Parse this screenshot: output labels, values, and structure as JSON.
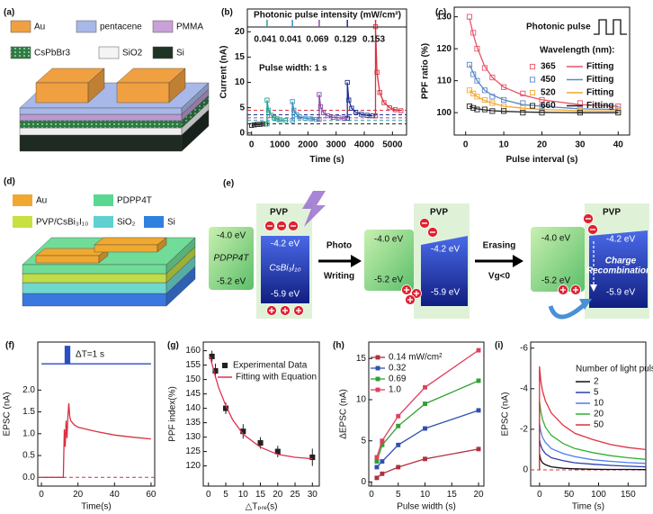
{
  "figures": {
    "a": {
      "label": "(a)",
      "legend": [
        "Au",
        "pentacene",
        "PMMA",
        "CsPbBr3",
        "SiO2",
        "Si"
      ]
    },
    "d": {
      "label": "(d)",
      "legend": [
        "Au",
        "PDPP4T",
        "PVP/CsBi₃I₁₀",
        "SiO₂",
        "Si"
      ]
    },
    "e": {
      "label": "(e)",
      "pvp": "PVP",
      "donor_lumo": "-4.0 eV",
      "donor_homo": "-5.2 eV",
      "donor": "PDPP4T",
      "acceptor_lumo": "-4.2 eV",
      "acceptor_homo": "-5.9 eV",
      "acceptor": "CsBi₃I₁₀",
      "step1": [
        "Photo",
        "Writing"
      ],
      "step2": [
        "Erasing",
        "Vg<0"
      ],
      "recombination": [
        "Charge",
        "Recombination"
      ]
    }
  },
  "chart_data": [
    {
      "type": "line",
      "label": "(b)",
      "xlabel": "Time (s)",
      "ylabel": "Current (nA)",
      "annotation": "Photonic pulse intensity (mW/cm²)",
      "note": "Pulse width: 1 s",
      "pulse_x": [
        550,
        1450,
        2400,
        3400,
        4400
      ],
      "intensities": [
        0.041,
        0.041,
        0.069,
        0.129,
        0.153
      ],
      "xlim": [
        -150,
        5500
      ],
      "xticks": [
        0,
        1000,
        2000,
        3000,
        4000,
        5000
      ],
      "ylim": [
        -0.4,
        24.5
      ],
      "yticks": [
        0,
        5,
        10,
        15,
        20
      ],
      "hlines": [
        {
          "value": 4.5,
          "color": "#d83040"
        },
        {
          "value": 3.6,
          "color": "#1f2f8f"
        },
        {
          "value": 3.0,
          "color": "#8a4ea8"
        },
        {
          "value": 2.5,
          "color": "#2aa090"
        },
        {
          "value": 1.8,
          "color": "#222222"
        }
      ],
      "series": [
        {
          "color": "#222222",
          "marker": "square-open",
          "x": [
            0,
            100,
            200,
            300,
            400,
            500
          ],
          "values": [
            1.5,
            1.6,
            1.7,
            1.7,
            1.8,
            1.8
          ]
        },
        {
          "color": "#2aa090",
          "marker": "square-open",
          "x": [
            550,
            550,
            600,
            700,
            800,
            900,
            1000,
            1200
          ],
          "values": [
            1.8,
            6.5,
            4.5,
            3.5,
            3.0,
            2.8,
            2.6,
            2.5
          ]
        },
        {
          "color": "#3b8fc0",
          "marker": "square-open",
          "x": [
            1450,
            1450,
            1500,
            1600,
            1700,
            1900,
            2100,
            2300
          ],
          "values": [
            2.5,
            6.2,
            4.5,
            3.6,
            3.2,
            2.9,
            2.8,
            2.7
          ]
        },
        {
          "color": "#8a4ea8",
          "marker": "square-open",
          "x": [
            2400,
            2400,
            2450,
            2550,
            2700,
            2900,
            3100,
            3300
          ],
          "values": [
            2.7,
            7.6,
            5.2,
            4.0,
            3.4,
            3.1,
            3.0,
            2.9
          ]
        },
        {
          "color": "#1f2f8f",
          "marker": "square-open",
          "x": [
            3400,
            3400,
            3450,
            3550,
            3700,
            3900,
            4100,
            4300
          ],
          "values": [
            2.9,
            10,
            6.5,
            4.9,
            4.1,
            3.7,
            3.5,
            3.4
          ]
        },
        {
          "color": "#d83040",
          "marker": "square-open",
          "x": [
            4400,
            4400,
            4450,
            4550,
            4700,
            4900,
            5100,
            5300
          ],
          "values": [
            3.4,
            21,
            12,
            8,
            6,
            5,
            4.6,
            4.4
          ]
        }
      ]
    },
    {
      "type": "scatter",
      "label": "(c)",
      "xlabel": "Pulse interval (s)",
      "ylabel": "PPF ratio (%)",
      "annotation": "Photonic pulse",
      "legend_title": "Wavelength (nm):",
      "xlim": [
        -3,
        43
      ],
      "xticks": [
        0,
        10,
        20,
        30,
        40
      ],
      "ylim": [
        93,
        133
      ],
      "yticks": [
        100,
        110,
        120,
        130
      ],
      "series": [
        {
          "name": "365",
          "fit_name": "Fitting",
          "color": "#e8546a",
          "marker": "square-open",
          "x": [
            1,
            2,
            3,
            5,
            7,
            10,
            15,
            20,
            30,
            40
          ],
          "values": [
            130,
            125,
            120,
            114,
            111,
            108,
            106,
            104,
            103,
            102
          ],
          "fit": [
            129.5,
            124.5,
            120.5,
            114.5,
            111,
            108,
            105.5,
            104,
            102.5,
            102
          ]
        },
        {
          "name": "450",
          "fit_name": "Fitting",
          "color": "#5a88c8",
          "marker": "square-open",
          "x": [
            1,
            2,
            3,
            5,
            7,
            10,
            15,
            20,
            30,
            40
          ],
          "values": [
            115,
            112,
            110,
            107,
            105,
            104,
            103,
            102,
            101,
            101
          ],
          "fit": [
            115,
            112.5,
            110,
            107,
            105.5,
            104,
            102.5,
            102,
            101.2,
            101
          ]
        },
        {
          "name": "520",
          "fit_name": "Fitting",
          "color": "#f0a830",
          "marker": "square-open",
          "x": [
            1,
            2,
            3,
            5,
            7,
            10,
            15,
            20,
            30,
            40
          ],
          "values": [
            107,
            106,
            105,
            104,
            103,
            102,
            101.5,
            101,
            100.5,
            100.5
          ],
          "fit": [
            107,
            106,
            105,
            103.8,
            103,
            102,
            101.4,
            101,
            100.6,
            100.5
          ]
        },
        {
          "name": "660",
          "fit_name": "Fitting",
          "color": "#222222",
          "marker": "square-open",
          "x": [
            1,
            2,
            3,
            5,
            7,
            10,
            15,
            20,
            30,
            40
          ],
          "values": [
            102,
            101.5,
            101,
            101,
            100.5,
            100.5,
            100,
            100,
            100,
            100
          ],
          "fit": [
            102,
            101.5,
            101.2,
            100.9,
            100.6,
            100.4,
            100.2,
            100.1,
            100,
            100
          ]
        }
      ]
    },
    {
      "type": "line",
      "label": "(f)",
      "xlabel": "Time(s)",
      "ylabel": "EPSC (nA)",
      "annotation": "ΔT=1 s",
      "xlim": [
        -2,
        62
      ],
      "xticks": [
        0,
        20,
        40,
        60
      ],
      "ylim": [
        -0.2,
        3.1
      ],
      "yticks": [
        {
          "value": 0,
          "label": "0.0"
        },
        {
          "value": 0.5,
          "label": "0.5"
        },
        {
          "value": 1,
          "label": "1.0"
        },
        {
          "value": 1.5,
          "label": "1.5"
        },
        {
          "value": 2,
          "label": "2.0"
        }
      ],
      "hlines": [
        {
          "value": 0,
          "color": "#d83040"
        }
      ],
      "series": [
        {
          "color": "#d83040",
          "x": [
            0,
            5,
            10,
            12,
            12.5,
            13,
            13.5,
            14,
            14.5,
            15,
            15.5,
            16,
            18,
            20,
            25,
            30,
            40,
            50,
            60
          ],
          "values": [
            0,
            0,
            0,
            0,
            1.1,
            0.7,
            1.3,
            0.9,
            1.4,
            1.7,
            1.4,
            1.3,
            1.2,
            1.15,
            1.1,
            1.05,
            0.97,
            0.92,
            0.88
          ]
        },
        {
          "color": "#2a4fc0",
          "x": [
            0,
            13,
            13,
            13.5,
            13.5,
            14,
            14,
            14.5,
            14.5,
            15,
            15,
            15.5,
            15.5,
            60
          ],
          "values": [
            2.6,
            2.6,
            3.0,
            3.0,
            2.6,
            2.6,
            3.0,
            3.0,
            2.6,
            2.6,
            3.0,
            3.0,
            2.6,
            2.6
          ]
        }
      ]
    },
    {
      "type": "scatter",
      "label": "(g)",
      "xlabel": "△Tₚᵣₑ(s)",
      "ylabel": "PPF index(%)",
      "xlim": [
        -1.5,
        32
      ],
      "xticks": [
        0,
        5,
        10,
        15,
        20,
        25,
        30
      ],
      "ylim": [
        113,
        163
      ],
      "yticks": [
        120,
        125,
        130,
        135,
        140,
        145,
        150,
        155,
        160
      ],
      "series": [
        {
          "name": "Experimental Data",
          "color": "#222222",
          "marker": "square",
          "x": [
            1,
            2,
            5,
            10,
            15,
            20,
            30
          ],
          "values": [
            158,
            153,
            140,
            132,
            128,
            125,
            123
          ],
          "errors": [
            2,
            2.5,
            2,
            2.5,
            2,
            2,
            3
          ]
        },
        {
          "name": "Fitting with Equation",
          "color": "#e03050",
          "x": [
            0.5,
            1,
            2,
            3,
            5,
            7,
            10,
            15,
            20,
            25,
            30
          ],
          "values": [
            158,
            155.5,
            151,
            147,
            141,
            136,
            131,
            126.5,
            124,
            123,
            122.5
          ]
        }
      ]
    },
    {
      "type": "line",
      "label": "(h)",
      "xlabel": "Pulse width (s)",
      "ylabel": "ΔEPSC (nA)",
      "xlim": [
        -0.5,
        21
      ],
      "xticks": [
        0,
        5,
        10,
        15,
        20
      ],
      "ylim": [
        -0.5,
        17
      ],
      "yticks": [
        0,
        5,
        10,
        15
      ],
      "series": [
        {
          "name": "0.14 mW/cm²",
          "color": "#b03040",
          "marker": "square",
          "x": [
            1,
            2,
            5,
            10,
            20
          ],
          "values": [
            0.5,
            1,
            1.8,
            2.8,
            4
          ]
        },
        {
          "name": "0.32",
          "color": "#3050b0",
          "marker": "square",
          "x": [
            1,
            2,
            5,
            10,
            20
          ],
          "values": [
            1.8,
            2.5,
            4.5,
            6.5,
            8.7
          ]
        },
        {
          "name": "0.69",
          "color": "#30a030",
          "marker": "square",
          "x": [
            1,
            2,
            5,
            10,
            20
          ],
          "values": [
            2.5,
            4.5,
            6.8,
            9.5,
            12.3
          ]
        },
        {
          "name": "1.0",
          "color": "#e04060",
          "marker": "square",
          "x": [
            1,
            2,
            5,
            10,
            20
          ],
          "values": [
            3,
            5,
            8,
            11.5,
            16
          ]
        }
      ]
    },
    {
      "type": "line",
      "label": "(i)",
      "xlabel": "Time (s)",
      "ylabel": "EPSC (nA)",
      "legend_title": "Number of light pulse",
      "xlim": [
        -15,
        180
      ],
      "xticks": [
        0,
        50,
        100,
        150
      ],
      "ylim": [
        0.8,
        -6.3
      ],
      "yticks": [
        -6,
        -4,
        -2,
        0
      ],
      "hlines": [
        {
          "value": 0,
          "color": "#d83040"
        }
      ],
      "series": [
        {
          "name": "2",
          "color": "#111111",
          "x": [
            0,
            0,
            2,
            5,
            10,
            20,
            40,
            60,
            90,
            120,
            150,
            180
          ],
          "values": [
            0,
            -0.8,
            -0.5,
            -0.35,
            -0.25,
            -0.15,
            -0.08,
            -0.05,
            -0.03,
            -0.02,
            -0.02,
            -0.01
          ]
        },
        {
          "name": "5",
          "color": "#2a3fb0",
          "x": [
            0,
            0,
            2,
            5,
            10,
            20,
            40,
            60,
            90,
            120,
            150,
            180
          ],
          "values": [
            0,
            -1.5,
            -1.2,
            -1.0,
            -0.8,
            -0.6,
            -0.45,
            -0.35,
            -0.28,
            -0.22,
            -0.18,
            -0.15
          ]
        },
        {
          "name": "10",
          "color": "#4a7ef0",
          "x": [
            0,
            0,
            2,
            5,
            10,
            20,
            40,
            60,
            90,
            120,
            150,
            180
          ],
          "values": [
            0,
            -2.3,
            -1.9,
            -1.6,
            -1.35,
            -1.05,
            -0.8,
            -0.65,
            -0.5,
            -0.42,
            -0.36,
            -0.32
          ]
        },
        {
          "name": "20",
          "color": "#30b030",
          "x": [
            0,
            0,
            2,
            5,
            10,
            20,
            40,
            60,
            90,
            120,
            150,
            180
          ],
          "values": [
            0,
            -3.4,
            -2.9,
            -2.5,
            -2.1,
            -1.7,
            -1.3,
            -1.05,
            -0.85,
            -0.7,
            -0.6,
            -0.52
          ]
        },
        {
          "name": "50",
          "color": "#e03040",
          "x": [
            0,
            0,
            2,
            5,
            10,
            20,
            40,
            60,
            90,
            120,
            150,
            180
          ],
          "values": [
            0,
            -5.1,
            -4.4,
            -3.9,
            -3.4,
            -2.8,
            -2.2,
            -1.8,
            -1.5,
            -1.25,
            -1.1,
            -1.0
          ]
        }
      ]
    }
  ]
}
